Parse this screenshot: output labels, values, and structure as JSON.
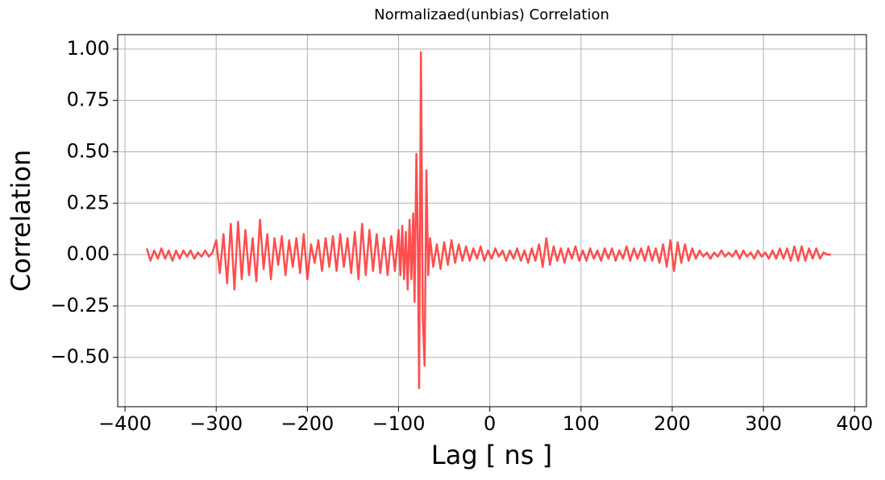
{
  "chart_data": {
    "type": "line",
    "title": "Normalizaed(unbias) Correlation",
    "xlabel": "Lag [ ns ]",
    "ylabel": "Correlation",
    "color": "#ff3b3b",
    "grid": true,
    "xlim": [
      -408,
      413
    ],
    "ylim": [
      -0.74,
      1.07
    ],
    "xticks": [
      {
        "value": -400,
        "label": "−400"
      },
      {
        "value": -300,
        "label": "−300"
      },
      {
        "value": -200,
        "label": "−200"
      },
      {
        "value": -100,
        "label": "−100"
      },
      0,
      100,
      200,
      300,
      400
    ],
    "yticks": [
      {
        "value": -0.5,
        "label": "−0.50"
      },
      {
        "value": -0.25,
        "label": "−0.25"
      },
      {
        "value": 0,
        "label": "0.00"
      },
      {
        "value": 0.25,
        "label": "0.25"
      },
      {
        "value": 0.5,
        "label": "0.50"
      },
      {
        "value": 0.75,
        "label": "0.75"
      },
      {
        "value": 1,
        "label": "1.00"
      }
    ],
    "x": [
      -376,
      -372,
      -368,
      -364,
      -360,
      -356,
      -352,
      -348,
      -344,
      -340,
      -336,
      -332,
      -328,
      -324,
      -320,
      -316,
      -312,
      -308,
      -304,
      -300,
      -296,
      -292,
      -288,
      -284,
      -280,
      -276,
      -272,
      -268,
      -264,
      -260,
      -256,
      -252,
      -248,
      -244,
      -240,
      -236,
      -232,
      -228,
      -224,
      -220,
      -216,
      -212,
      -208,
      -204,
      -200,
      -196,
      -192,
      -188,
      -184,
      -180,
      -176,
      -172,
      -168,
      -164,
      -160,
      -156,
      -152,
      -148,
      -144,
      -140,
      -136,
      -132,
      -128,
      -124,
      -120,
      -116,
      -112,
      -108,
      -104,
      -100,
      -98,
      -96,
      -94,
      -92,
      -90,
      -88,
      -86,
      -84,
      -82.5,
      -80.5,
      -79,
      -77.5,
      -75.5,
      -73.5,
      -71.5,
      -69.5,
      -67.5,
      -65.5,
      -62,
      -58,
      -54,
      -50,
      -46,
      -42,
      -38,
      -34,
      -30,
      -26,
      -22,
      -18,
      -14,
      -10,
      -6,
      -2,
      2,
      6,
      10,
      14,
      18,
      22,
      26,
      30,
      34,
      38,
      42,
      46,
      50,
      54,
      58,
      62,
      66,
      70,
      74,
      78,
      82,
      86,
      90,
      94,
      98,
      102,
      106,
      110,
      114,
      118,
      122,
      126,
      130,
      134,
      138,
      142,
      146,
      150,
      154,
      158,
      162,
      166,
      170,
      174,
      178,
      182,
      186,
      190,
      194,
      198,
      202,
      206,
      210,
      214,
      218,
      222,
      226,
      230,
      234,
      238,
      242,
      246,
      250,
      254,
      258,
      262,
      266,
      270,
      274,
      278,
      282,
      286,
      290,
      294,
      298,
      302,
      306,
      310,
      314,
      318,
      322,
      326,
      330,
      334,
      338,
      342,
      346,
      350,
      354,
      358,
      362,
      366,
      370,
      374
    ],
    "values": [
      0.03,
      -0.03,
      0.02,
      -0.02,
      0.03,
      -0.02,
      0.02,
      -0.03,
      0.02,
      -0.02,
      0.02,
      -0.01,
      0.02,
      -0.02,
      0.01,
      -0.01,
      0.02,
      -0.01,
      0.01,
      0.07,
      -0.09,
      0.1,
      -0.14,
      0.15,
      -0.17,
      0.16,
      -0.12,
      0.12,
      -0.1,
      0.08,
      -0.13,
      0.17,
      -0.07,
      0.1,
      -0.12,
      0.08,
      -0.05,
      0.09,
      -0.1,
      0.07,
      -0.06,
      0.08,
      -0.09,
      0.1,
      -0.12,
      0.05,
      -0.04,
      0.07,
      -0.08,
      0.08,
      -0.06,
      0.09,
      -0.08,
      0.1,
      -0.06,
      0.08,
      -0.09,
      0.11,
      -0.12,
      0.15,
      -0.1,
      0.12,
      -0.08,
      0.1,
      -0.09,
      0.08,
      -0.1,
      0.09,
      -0.08,
      0.12,
      -0.1,
      0.14,
      -0.12,
      0.11,
      -0.17,
      0.17,
      -0.12,
      0.2,
      -0.23,
      0.49,
      0.1,
      -0.65,
      0.985,
      -0.3,
      -0.54,
      0.41,
      -0.1,
      0.08,
      -0.06,
      0.05,
      -0.07,
      0.06,
      -0.05,
      0.07,
      -0.04,
      0.05,
      -0.03,
      0.04,
      -0.03,
      0.03,
      -0.02,
      0.04,
      -0.03,
      0.02,
      -0.02,
      0.03,
      -0.01,
      0.02,
      -0.03,
      0.02,
      -0.02,
      0.03,
      -0.03,
      0.02,
      -0.04,
      0.03,
      -0.03,
      0.05,
      -0.06,
      0.08,
      -0.05,
      0.04,
      -0.03,
      0.03,
      -0.04,
      0.03,
      -0.02,
      0.04,
      -0.03,
      0.02,
      -0.03,
      0.03,
      -0.02,
      0.02,
      -0.03,
      0.03,
      -0.02,
      0.03,
      -0.03,
      0.02,
      -0.02,
      0.04,
      -0.03,
      0.03,
      -0.02,
      0.03,
      -0.03,
      0.04,
      -0.03,
      0.03,
      -0.04,
      0.05,
      -0.06,
      0.07,
      -0.08,
      0.06,
      -0.04,
      0.05,
      -0.03,
      0.03,
      -0.02,
      0.02,
      -0.01,
      0.01,
      -0.02,
      0.01,
      -0.01,
      0.02,
      -0.01,
      0.01,
      -0.01,
      0.02,
      -0.02,
      0.02,
      -0.01,
      0.01,
      -0.02,
      0.02,
      -0.01,
      0.01,
      -0.02,
      0.02,
      -0.02,
      0.03,
      -0.02,
      0.03,
      -0.03,
      0.04,
      -0.03,
      0.04,
      -0.03,
      0.03,
      -0.02,
      0.03,
      -0.02,
      0.01,
      0,
      0
    ]
  }
}
